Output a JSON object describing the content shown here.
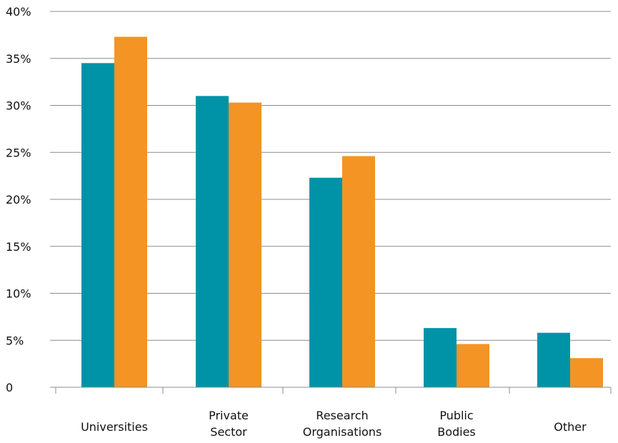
{
  "chart_data": {
    "type": "bar",
    "categories": [
      [
        "Universities"
      ],
      [
        "Private",
        "Sector"
      ],
      [
        "Research",
        "Organisations"
      ],
      [
        "Public",
        "Bodies"
      ],
      [
        "Other"
      ]
    ],
    "series": [
      {
        "values": [
          34.5,
          31.0,
          22.3,
          6.3,
          5.8
        ]
      },
      {
        "values": [
          37.3,
          30.3,
          24.6,
          4.6,
          3.1
        ]
      }
    ],
    "colors": [
      "#0093A7",
      "#F39425"
    ],
    "ylim": [
      0,
      40
    ],
    "yticks": [
      0,
      5,
      10,
      15,
      20,
      25,
      30,
      35,
      40
    ],
    "ytick_labels": [
      "0",
      "5%",
      "10%",
      "15%",
      "20%",
      "25%",
      "30%",
      "35%",
      "40%"
    ],
    "grid": true,
    "legend": "none"
  }
}
